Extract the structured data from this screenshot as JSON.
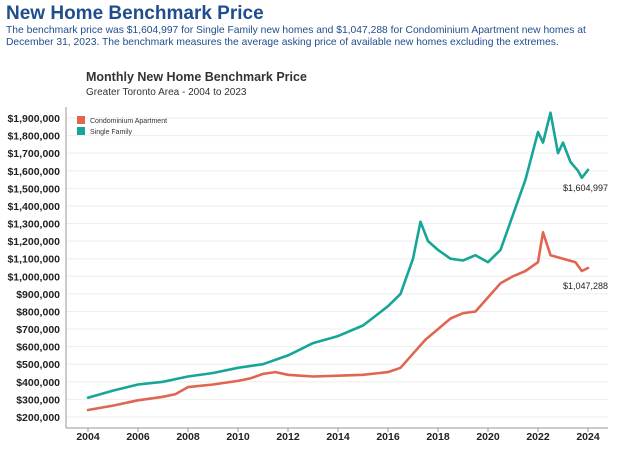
{
  "header": {
    "title": "New Home Benchmark Price",
    "description": "The benchmark price was $1,604,997 for Single Family new homes and $1,047,288 for Condominium Apartment new homes at December 31, 2023. The benchmark measures the average asking price of available new homes excluding the extremes."
  },
  "colors": {
    "condo": "#e06651",
    "single": "#17a598",
    "title": "#1f4e8c"
  },
  "chart_data": {
    "type": "line",
    "title": "Monthly New Home Benchmark Price",
    "subtitle": "Greater Toronto Area - 2004 to 2023",
    "xlabel": "",
    "ylabel": "",
    "xlim": [
      2004,
      2024
    ],
    "ylim": [
      200000,
      1950000
    ],
    "x_ticks": [
      2004,
      2006,
      2008,
      2010,
      2012,
      2014,
      2016,
      2018,
      2020,
      2022,
      2024
    ],
    "y_ticks": [
      200000,
      300000,
      400000,
      500000,
      600000,
      700000,
      800000,
      900000,
      1000000,
      1100000,
      1200000,
      1300000,
      1400000,
      1500000,
      1600000,
      1700000,
      1800000,
      1900000
    ],
    "y_tick_labels": [
      "$200,000",
      "$300,000",
      "$400,000",
      "$500,000",
      "$600,000",
      "$700,000",
      "$800,000",
      "$900,000",
      "$1,000,000",
      "$1,100,000",
      "$1,200,000",
      "$1,300,000",
      "$1,400,000",
      "$1,500,000",
      "$1,600,000",
      "$1,700,000",
      "$1,800,000",
      "$1,900,000"
    ],
    "legend": [
      "Condominium Apartment",
      "Single Family"
    ],
    "series": [
      {
        "name": "Condominium Apartment",
        "x": [
          2004,
          2005,
          2006,
          2007,
          2007.5,
          2008,
          2009,
          2010,
          2010.5,
          2011,
          2011.5,
          2012,
          2012.5,
          2013,
          2014,
          2015,
          2016,
          2016.5,
          2017,
          2017.5,
          2018,
          2018.5,
          2019,
          2019.5,
          2020,
          2020.5,
          2021,
          2021.5,
          2022,
          2022.2,
          2022.5,
          2023,
          2023.5,
          2023.75,
          2024
        ],
        "values": [
          240000,
          265000,
          295000,
          315000,
          330000,
          370000,
          385000,
          405000,
          420000,
          445000,
          455000,
          440000,
          435000,
          430000,
          435000,
          440000,
          455000,
          480000,
          560000,
          640000,
          700000,
          760000,
          790000,
          800000,
          880000,
          960000,
          1000000,
          1030000,
          1080000,
          1250000,
          1120000,
          1100000,
          1080000,
          1030000,
          1047288
        ]
      },
      {
        "name": "Single Family",
        "x": [
          2004,
          2005,
          2006,
          2007,
          2008,
          2009,
          2010,
          2011,
          2012,
          2012.5,
          2013,
          2014,
          2015,
          2016,
          2016.5,
          2017,
          2017.3,
          2017.6,
          2018,
          2018.5,
          2019,
          2019.5,
          2020,
          2020.5,
          2021,
          2021.5,
          2022,
          2022.2,
          2022.5,
          2022.8,
          2023,
          2023.3,
          2023.6,
          2023.75,
          2024
        ],
        "values": [
          310000,
          350000,
          385000,
          400000,
          430000,
          450000,
          480000,
          500000,
          550000,
          585000,
          620000,
          660000,
          720000,
          830000,
          900000,
          1100000,
          1310000,
          1200000,
          1150000,
          1100000,
          1090000,
          1120000,
          1080000,
          1150000,
          1350000,
          1550000,
          1820000,
          1760000,
          1930000,
          1700000,
          1760000,
          1650000,
          1600000,
          1560000,
          1604997
        ]
      }
    ],
    "end_labels": [
      "$1,604,997",
      "$1,047,288"
    ]
  }
}
